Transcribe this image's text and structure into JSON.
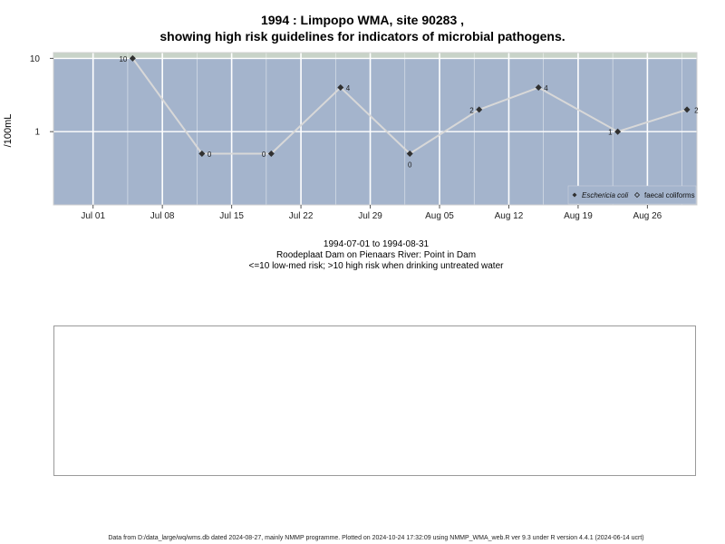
{
  "title_line1": "1994 : Limpopo WMA, site 90283 ,",
  "title_line2": "showing high risk guidelines for indicators of microbial pathogens.",
  "caption": {
    "date_range": "1994-07-01 to 1994-08-31",
    "location": "Roodeplaat Dam on Pienaars River: Point in Dam",
    "risk_note": "<=10 low-med risk; >10 high risk when drinking untreated water"
  },
  "footer": "Data from D:/data_large/wq/wms.db dated 2024-08-27, mainly NMMP programme. Plotted on 2024-10-24 17:32:09 using NMMP_WMA_web.R ver 9.3 under R version 4.4.1 (2024-06-14 ucrt)",
  "colors": {
    "plot_background": "#a4b4cc",
    "guideline_band": "#c8d3c8",
    "gridline": "#ffffff",
    "series_line": "#d8d8d8",
    "point": "#303030"
  },
  "chart_data": {
    "type": "line",
    "ylabel": "/100mL",
    "y_scale": "log",
    "ylim": [
      0.1,
      12
    ],
    "y_ticks": [
      {
        "value": 1,
        "label": "1"
      },
      {
        "value": 10,
        "label": "10"
      }
    ],
    "x_range": [
      "1994-06-27",
      "1994-08-31"
    ],
    "x_ticks": [
      {
        "date": "1994-07-01",
        "label": "Jul 01"
      },
      {
        "date": "1994-07-08",
        "label": "Jul 08"
      },
      {
        "date": "1994-07-15",
        "label": "Jul 15"
      },
      {
        "date": "1994-07-22",
        "label": "Jul 22"
      },
      {
        "date": "1994-07-29",
        "label": "Jul 29"
      },
      {
        "date": "1994-08-05",
        "label": "Aug 05"
      },
      {
        "date": "1994-08-12",
        "label": "Aug 12"
      },
      {
        "date": "1994-08-19",
        "label": "Aug 19"
      },
      {
        "date": "1994-08-26",
        "label": "Aug 26"
      }
    ],
    "high_risk_threshold": 10,
    "grid": true,
    "legend_position": "bottom-right",
    "series": [
      {
        "name": "Eschericia coli",
        "marker": "filled-diamond",
        "points": [
          {
            "date": "1994-07-05",
            "value": 10,
            "label": "10"
          },
          {
            "date": "1994-07-12",
            "value": 0.5,
            "label": "0"
          },
          {
            "date": "1994-07-19",
            "value": 0.5,
            "label": "0"
          },
          {
            "date": "1994-07-26",
            "value": 4,
            "label": "4"
          },
          {
            "date": "1994-08-02",
            "value": 0.5,
            "label": "0"
          },
          {
            "date": "1994-08-09",
            "value": 2,
            "label": "2"
          },
          {
            "date": "1994-08-15",
            "value": 4,
            "label": "4"
          },
          {
            "date": "1994-08-23",
            "value": 1,
            "label": "1"
          },
          {
            "date": "1994-08-30",
            "value": 2,
            "label": "2"
          }
        ]
      },
      {
        "name": "faecal coliforms",
        "marker": "open-diamond",
        "points": []
      }
    ]
  }
}
